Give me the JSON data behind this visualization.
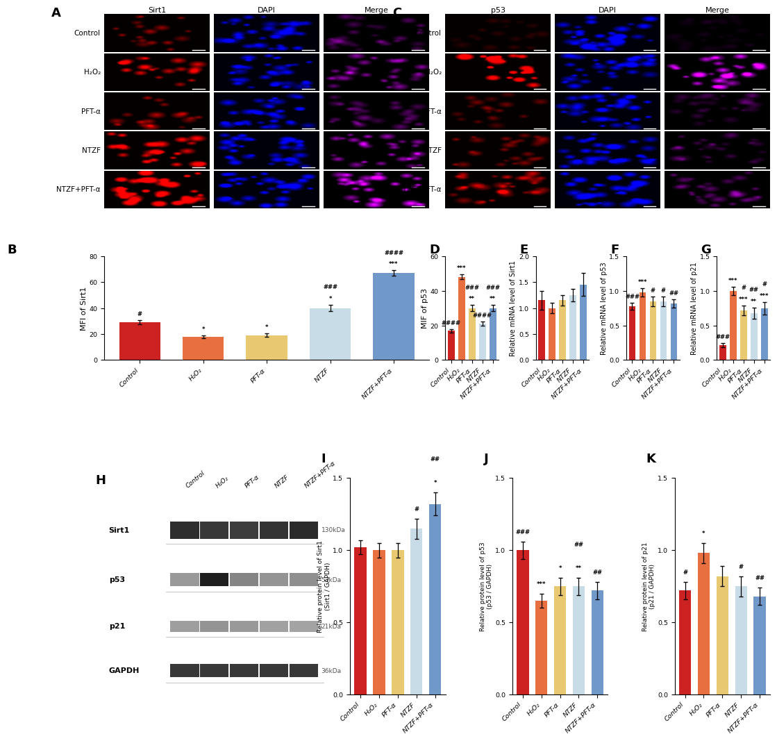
{
  "categories": [
    "Control",
    "H₂O₂",
    "PFT-α",
    "NTZF",
    "NTZF+PFT-α"
  ],
  "bar_colors": [
    "#cc2222",
    "#e87040",
    "#e8c870",
    "#c8dce8",
    "#7098c8"
  ],
  "panel_B": {
    "ylabel": "MFI of Sirt1",
    "ylim": [
      0,
      80
    ],
    "yticks": [
      0,
      20,
      40,
      60,
      80
    ],
    "values": [
      29,
      18,
      19,
      40,
      67
    ],
    "errors": [
      1.5,
      1.2,
      1.3,
      2.5,
      2.0
    ],
    "ann_star": {
      "1": "*",
      "2": "*",
      "3": "*",
      "4": "***"
    },
    "ann_hash": {
      "0": "#",
      "3": "###",
      "4": "####"
    }
  },
  "panel_D": {
    "ylabel": "MIF of p53",
    "ylim": [
      0,
      60
    ],
    "yticks": [
      0,
      20,
      40,
      60
    ],
    "values": [
      17,
      48,
      30,
      21,
      30
    ],
    "errors": [
      1.0,
      1.5,
      1.8,
      1.2,
      1.8
    ],
    "ann_star": {
      "1": "***",
      "2": "**",
      "4": "**"
    },
    "ann_hash": {
      "0": "####",
      "2": "###",
      "3": "####",
      "4": "###"
    }
  },
  "panel_E": {
    "ylabel": "Relative mRNA level of Sirt1",
    "ylim": [
      0,
      2.0
    ],
    "yticks": [
      0.0,
      0.5,
      1.0,
      1.5,
      2.0
    ],
    "values": [
      1.15,
      1.0,
      1.15,
      1.25,
      1.45
    ],
    "errors": [
      0.18,
      0.1,
      0.1,
      0.12,
      0.22
    ],
    "ann_star": {},
    "ann_hash": {}
  },
  "panel_F": {
    "ylabel": "Relative mRNA level of p53",
    "ylim": [
      0,
      1.5
    ],
    "yticks": [
      0.0,
      0.5,
      1.0,
      1.5
    ],
    "values": [
      0.78,
      0.98,
      0.85,
      0.85,
      0.82
    ],
    "errors": [
      0.05,
      0.06,
      0.07,
      0.07,
      0.06
    ],
    "ann_star": {
      "1": "***"
    },
    "ann_hash": {
      "0": "###",
      "2": "#",
      "3": "#",
      "4": "##"
    }
  },
  "panel_G": {
    "ylabel": "Relative mRNA level of p21",
    "ylim": [
      0,
      1.5
    ],
    "yticks": [
      0.0,
      0.5,
      1.0,
      1.5
    ],
    "values": [
      0.22,
      1.0,
      0.72,
      0.68,
      0.75
    ],
    "errors": [
      0.03,
      0.06,
      0.07,
      0.08,
      0.09
    ],
    "ann_star": {
      "1": "***",
      "2": "***",
      "3": "**",
      "4": "***"
    },
    "ann_hash": {
      "0": "###",
      "2": "#",
      "3": "##",
      "4": "#"
    }
  },
  "panel_I": {
    "ylabel": "Relative protein level of Sirt1\n(Sirt1 / GAPDH)",
    "ylim": [
      0,
      1.5
    ],
    "yticks": [
      0.0,
      0.5,
      1.0,
      1.5
    ],
    "values": [
      1.02,
      1.0,
      1.0,
      1.15,
      1.32
    ],
    "errors": [
      0.05,
      0.05,
      0.05,
      0.07,
      0.08
    ],
    "ann_star": {
      "4": "*"
    },
    "ann_hash": {
      "3": "#",
      "4": "##"
    }
  },
  "panel_J": {
    "ylabel": "Relative protein level of p53\n(p53 / GAPDH)",
    "ylim": [
      0,
      1.5
    ],
    "yticks": [
      0.0,
      0.5,
      1.0,
      1.5
    ],
    "values": [
      1.0,
      0.65,
      0.75,
      0.75,
      0.72
    ],
    "errors": [
      0.06,
      0.05,
      0.06,
      0.06,
      0.06
    ],
    "ann_star": {
      "1": "***",
      "2": "*",
      "3": "**"
    },
    "ann_hash": {
      "0": "###",
      "3": "##",
      "4": "##"
    }
  },
  "panel_K": {
    "ylabel": "Relative protein level of p21\n(p21 / GAPDH)",
    "ylim": [
      0,
      1.5
    ],
    "yticks": [
      0.0,
      0.5,
      1.0,
      1.5
    ],
    "values": [
      0.72,
      0.98,
      0.82,
      0.75,
      0.68
    ],
    "errors": [
      0.06,
      0.07,
      0.07,
      0.07,
      0.06
    ],
    "ann_star": {
      "1": "*"
    },
    "ann_hash": {
      "0": "#",
      "3": "#",
      "4": "##"
    }
  },
  "wb_labels": [
    "Sirt1",
    "p53",
    "p21",
    "GAPDH"
  ],
  "wb_kda": [
    "130kDa",
    "53kDa",
    "21kDa",
    "36kDa"
  ],
  "if_row_labels": [
    "Control",
    "H₂O₂",
    "PFT-α",
    "NTZF",
    "NTZF+PFT-α"
  ],
  "panel_A_col_labels": [
    "Sirt1",
    "DAPI",
    "Merge"
  ],
  "panel_C_col_labels": [
    "p53",
    "DAPI",
    "Merge"
  ]
}
